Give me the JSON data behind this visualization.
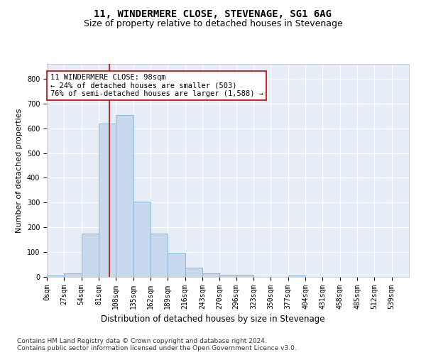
{
  "title": "11, WINDERMERE CLOSE, STEVENAGE, SG1 6AG",
  "subtitle": "Size of property relative to detached houses in Stevenage",
  "xlabel": "Distribution of detached houses by size in Stevenage",
  "ylabel": "Number of detached properties",
  "bar_color": "#c8d9ee",
  "bar_edge_color": "#7bafd4",
  "background_color": "#e8eef8",
  "grid_color": "#ffffff",
  "property_line_color": "#cc0000",
  "property_value": 98,
  "annotation_line1": "11 WINDERMERE CLOSE: 98sqm",
  "annotation_line2": "← 24% of detached houses are smaller (503)",
  "annotation_line3": "76% of semi-detached houses are larger (1,588) →",
  "footer_text": "Contains HM Land Registry data © Crown copyright and database right 2024.\nContains public sector information licensed under the Open Government Licence v3.0.",
  "bin_width": 27,
  "bin_starts": [
    0,
    27,
    54,
    81,
    108,
    135,
    162,
    189,
    216,
    243,
    270,
    296,
    323,
    350,
    377,
    404,
    431,
    458,
    485,
    512
  ],
  "bar_heights": [
    5,
    15,
    175,
    620,
    655,
    305,
    175,
    98,
    38,
    15,
    10,
    10,
    0,
    0,
    5,
    0,
    0,
    0,
    0,
    0
  ],
  "tick_labels": [
    "0sqm",
    "27sqm",
    "54sqm",
    "81sqm",
    "108sqm",
    "135sqm",
    "162sqm",
    "189sqm",
    "216sqm",
    "243sqm",
    "270sqm",
    "296sqm",
    "323sqm",
    "350sqm",
    "377sqm",
    "404sqm",
    "431sqm",
    "458sqm",
    "485sqm",
    "512sqm",
    "539sqm"
  ],
  "ylim": [
    0,
    860
  ],
  "yticks": [
    0,
    100,
    200,
    300,
    400,
    500,
    600,
    700,
    800
  ],
  "title_fontsize": 10,
  "subtitle_fontsize": 9,
  "axis_label_fontsize": 8,
  "tick_fontsize": 7,
  "annotation_fontsize": 7.5,
  "footer_fontsize": 6.5
}
